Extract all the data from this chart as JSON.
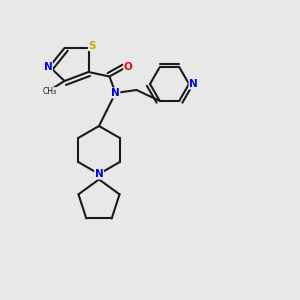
{
  "background_color": "#e8e8e8",
  "bond_color": "#1a1a1a",
  "bond_lw": 1.5,
  "atom_colors": {
    "N": "#0000ee",
    "O": "#ee0000",
    "S": "#ccaa00",
    "C": "#1a1a1a"
  },
  "font_size_atom": 7.5,
  "font_size_methyl": 6.5
}
